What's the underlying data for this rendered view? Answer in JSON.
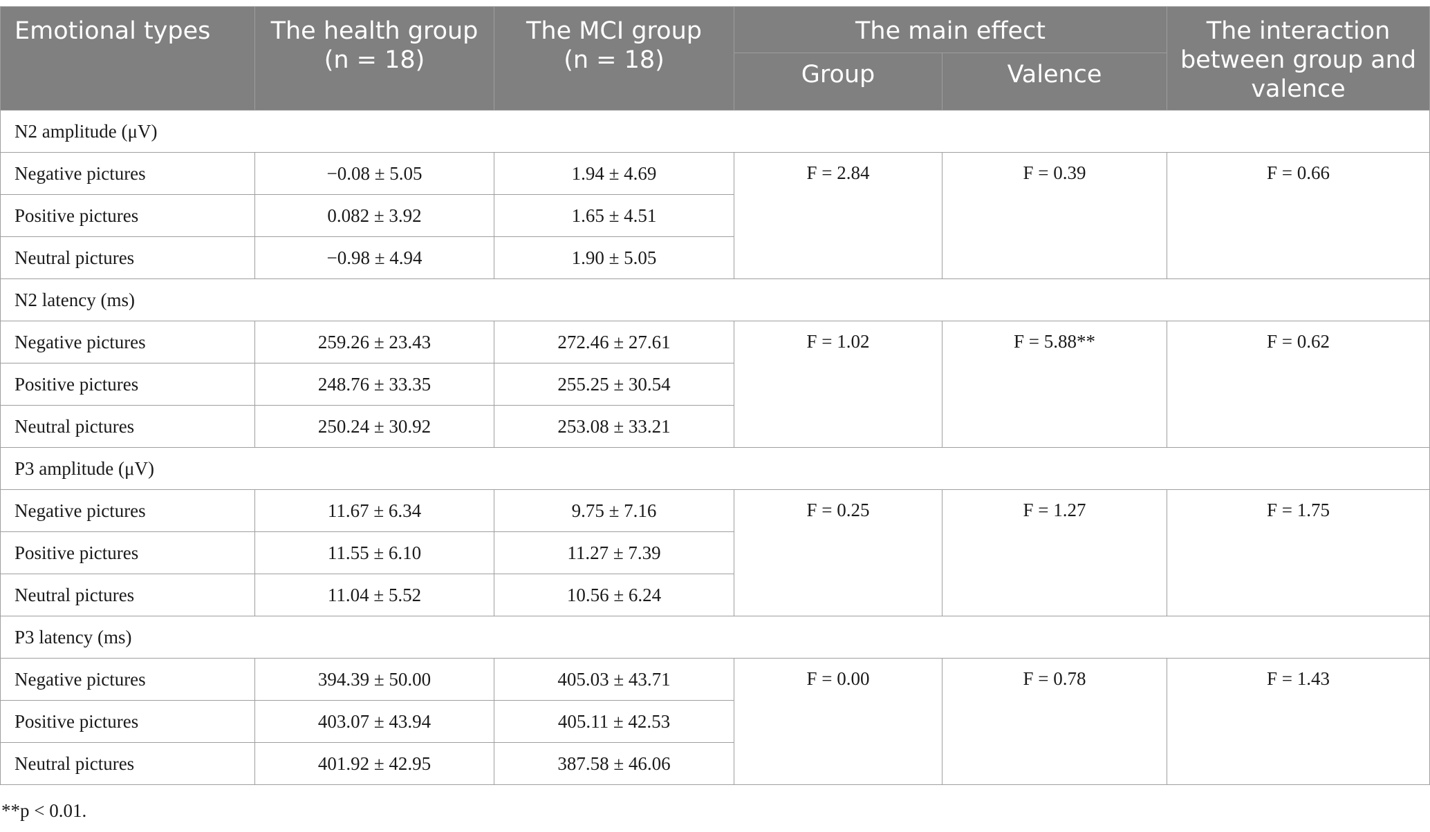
{
  "header": {
    "col1": "Emotional types",
    "col2_line1": "The health group",
    "col2_line2": "(n = 18)",
    "col3_line1": "The MCI group",
    "col3_line2": "(n = 18)",
    "main_effect": "The main effect",
    "group": "Group",
    "valence": "Valence",
    "interaction": "The interaction between group and valence"
  },
  "sections": [
    {
      "title": "N2 amplitude (μV)",
      "rows": [
        {
          "label": "Negative pictures",
          "health": "−0.08 ± 5.05",
          "mci": "1.94 ± 4.69"
        },
        {
          "label": "Positive pictures",
          "health": "0.082 ± 3.92",
          "mci": "1.65 ± 4.51"
        },
        {
          "label": "Neutral pictures",
          "health": "−0.98 ± 4.94",
          "mci": "1.90 ± 5.05"
        }
      ],
      "group_f": "F = 2.84",
      "valence_f": "F = 0.39",
      "interaction_f": "F = 0.66"
    },
    {
      "title": "N2 latency (ms)",
      "rows": [
        {
          "label": "Negative pictures",
          "health": "259.26 ± 23.43",
          "mci": "272.46 ± 27.61"
        },
        {
          "label": "Positive pictures",
          "health": "248.76 ± 33.35",
          "mci": "255.25 ± 30.54"
        },
        {
          "label": "Neutral pictures",
          "health": "250.24 ± 30.92",
          "mci": "253.08 ± 33.21"
        }
      ],
      "group_f": "F = 1.02",
      "valence_f": "F = 5.88**",
      "interaction_f": "F = 0.62"
    },
    {
      "title": "P3 amplitude (μV)",
      "rows": [
        {
          "label": "Negative pictures",
          "health": "11.67 ± 6.34",
          "mci": "9.75 ± 7.16"
        },
        {
          "label": "Positive pictures",
          "health": "11.55 ± 6.10",
          "mci": "11.27 ± 7.39"
        },
        {
          "label": "Neutral pictures",
          "health": "11.04 ± 5.52",
          "mci": "10.56 ± 6.24"
        }
      ],
      "group_f": "F = 0.25",
      "valence_f": "F = 1.27",
      "interaction_f": "F = 1.75"
    },
    {
      "title": "P3 latency (ms)",
      "rows": [
        {
          "label": "Negative pictures",
          "health": "394.39 ± 50.00",
          "mci": "405.03 ± 43.71"
        },
        {
          "label": "Positive pictures",
          "health": "403.07 ± 43.94",
          "mci": "405.11 ± 42.53"
        },
        {
          "label": "Neutral pictures",
          "health": "401.92 ± 42.95",
          "mci": "387.58 ± 46.06"
        }
      ],
      "group_f": "F = 0.00",
      "valence_f": "F = 0.78",
      "interaction_f": "F = 1.43"
    }
  ],
  "footnote": "**p < 0.01."
}
